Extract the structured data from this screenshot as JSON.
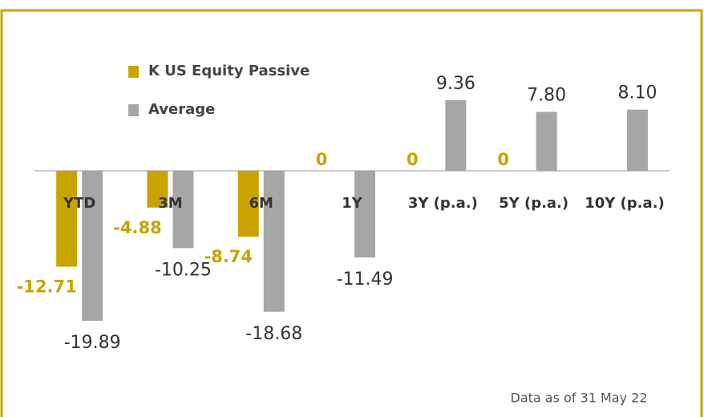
{
  "chart_data": {
    "type": "bar",
    "categories": [
      "YTD",
      "3M",
      "6M",
      "1Y",
      "3Y (p.a.)",
      "5Y (p.a.)",
      "10Y (p.a.)"
    ],
    "series": [
      {
        "name": "K US Equity Passive",
        "color": "#c9a400",
        "values": [
          -12.71,
          -4.88,
          -8.74,
          0,
          0,
          0,
          null
        ]
      },
      {
        "name": "Average",
        "color": "#a6a6a6",
        "values": [
          -19.89,
          -10.25,
          -18.68,
          -11.49,
          9.36,
          7.8,
          8.1
        ],
        "value_labels": [
          "-19.89",
          "-10.25",
          "-18.68",
          "-11.49",
          "9.36",
          "7.80",
          "8.10"
        ]
      }
    ],
    "ylim": [
      -22,
      12
    ],
    "legend": "upper left",
    "note": "Data as of 31 May 22"
  }
}
